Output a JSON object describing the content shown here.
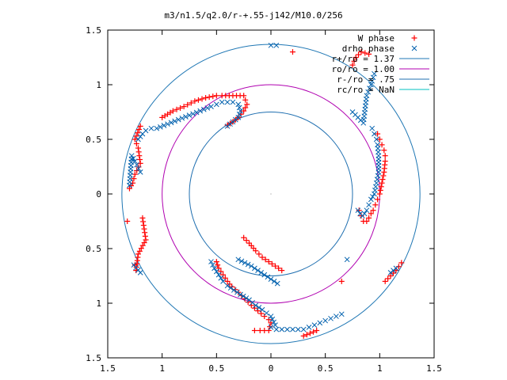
{
  "chart_data": {
    "type": "scatter",
    "title": "m3/n1.5/q2.0/r-+.55-j142/M10.0/256",
    "xlim": [
      -1.5,
      1.5
    ],
    "ylim": [
      -1.5,
      1.5
    ],
    "x_ticks": [
      {
        "value": -1.5,
        "label": "1.5"
      },
      {
        "value": -1,
        "label": "1"
      },
      {
        "value": -0.5,
        "label": "0.5"
      },
      {
        "value": 0,
        "label": "0"
      },
      {
        "value": 0.5,
        "label": "0.5"
      },
      {
        "value": 1,
        "label": "1"
      },
      {
        "value": 1.5,
        "label": "1.5"
      }
    ],
    "y_ticks": [
      {
        "value": 1.5,
        "label": "1.5"
      },
      {
        "value": 1,
        "label": "1"
      },
      {
        "value": 0.5,
        "label": "0.5"
      },
      {
        "value": 0,
        "label": "0"
      },
      {
        "value": -0.5,
        "label": "0.5"
      },
      {
        "value": -1,
        "label": "1"
      },
      {
        "value": -1.5,
        "label": "1.5"
      }
    ],
    "legend_position": "top-right",
    "series": [
      {
        "name": "W phase",
        "marker": "plus",
        "color": "#ff0000",
        "arms": [
          {
            "x": [
              -1.0,
              -0.9,
              -0.8,
              -0.7,
              -0.6,
              -0.5,
              -0.45,
              -0.35,
              -0.25,
              -0.22,
              -0.25,
              -0.3,
              -0.35,
              -0.4
            ],
            "y": [
              0.7,
              0.76,
              0.8,
              0.85,
              0.88,
              0.9,
              0.9,
              0.9,
              0.9,
              0.82,
              0.76,
              0.7,
              0.66,
              0.63
            ]
          },
          {
            "x": [
              0.98,
              1.0,
              1.02,
              1.04,
              1.05,
              1.05,
              1.04,
              1.02,
              1.0,
              0.98,
              0.96,
              0.94,
              0.92,
              0.9,
              0.88,
              0.85,
              0.83,
              0.81
            ],
            "y": [
              0.55,
              0.5,
              0.45,
              0.4,
              0.35,
              0.3,
              0.2,
              0.1,
              0.0,
              -0.05,
              -0.1,
              -0.15,
              -0.18,
              -0.22,
              -0.25,
              -0.25,
              -0.2,
              -0.15
            ]
          },
          {
            "x": [
              -0.5,
              -0.48,
              -0.44,
              -0.4,
              -0.36,
              -0.3,
              -0.24,
              -0.18,
              -0.12,
              -0.06,
              -0.02,
              0.0,
              -0.02,
              -0.1,
              -0.15
            ],
            "y": [
              -0.62,
              -0.68,
              -0.74,
              -0.8,
              -0.85,
              -0.9,
              -0.96,
              -1.02,
              -1.07,
              -1.12,
              -1.15,
              -1.18,
              -1.25,
              -1.25,
              -1.25
            ]
          },
          {
            "x": [
              -0.25,
              -0.2,
              -0.14,
              -0.08,
              -0.02,
              0.04,
              0.1
            ],
            "y": [
              -0.4,
              -0.45,
              -0.52,
              -0.58,
              -0.62,
              -0.66,
              -0.7
            ]
          },
          {
            "x": [
              -1.3,
              -1.27,
              -1.25,
              -1.2,
              -1.22,
              -1.25,
              -1.2,
              -1.18,
              -1.15,
              -1.22,
              -1.24,
              -1.32,
              -1.25
            ],
            "y": [
              0.05,
              0.1,
              0.18,
              0.28,
              0.42,
              0.5,
              0.62,
              -0.22,
              -0.42,
              -0.55,
              -0.7,
              -0.25,
              -0.65
            ]
          },
          {
            "x": [
              0.75,
              0.78,
              0.83,
              0.9,
              1.05,
              1.15,
              1.2,
              0.65,
              0.42,
              0.3,
              0.2
            ],
            "y": [
              1.18,
              1.25,
              1.3,
              1.28,
              -0.8,
              -0.7,
              -0.63,
              -0.8,
              -1.25,
              -1.3,
              1.3
            ]
          }
        ]
      },
      {
        "name": "drho phase",
        "marker": "cross",
        "color": "#0060ad",
        "arms": [
          {
            "x": [
              -1.05,
              -0.95,
              -0.85,
              -0.75,
              -0.65,
              -0.55,
              -0.5,
              -0.45,
              -0.4,
              -0.35,
              -0.3,
              -0.28,
              -0.3,
              -0.35,
              -0.4
            ],
            "y": [
              0.6,
              0.64,
              0.68,
              0.72,
              0.76,
              0.8,
              0.82,
              0.84,
              0.84,
              0.84,
              0.82,
              0.76,
              0.7,
              0.66,
              0.62
            ]
          },
          {
            "x": [
              0.93,
              0.95,
              0.97,
              0.98,
              0.99,
              0.99,
              0.97,
              0.95,
              0.92,
              0.9,
              0.88,
              0.86,
              0.84,
              0.82,
              0.8
            ],
            "y": [
              0.6,
              0.55,
              0.5,
              0.45,
              0.35,
              0.2,
              0.1,
              0.0,
              -0.05,
              -0.1,
              -0.15,
              -0.18,
              -0.2,
              -0.18,
              -0.15
            ]
          },
          {
            "x": [
              -0.55,
              -0.52,
              -0.48,
              -0.44,
              -0.4,
              -0.34,
              -0.28,
              -0.2,
              -0.14,
              -0.08,
              -0.04,
              0.0,
              0.04
            ],
            "y": [
              -0.62,
              -0.68,
              -0.74,
              -0.8,
              -0.84,
              -0.88,
              -0.92,
              -0.97,
              -1.02,
              -1.06,
              -1.09,
              -1.12,
              -1.2
            ]
          },
          {
            "x": [
              -0.3,
              -0.24,
              -0.18,
              -0.12,
              -0.06,
              0.0,
              0.06
            ],
            "y": [
              -0.6,
              -0.63,
              -0.66,
              -0.7,
              -0.74,
              -0.78,
              -0.82
            ]
          },
          {
            "x": [
              -1.2,
              -1.25,
              -1.28,
              -1.3,
              -1.22,
              -1.18,
              -1.15,
              -1.1,
              -1.26,
              -1.2
            ],
            "y": [
              0.2,
              0.3,
              0.35,
              0.08,
              0.5,
              0.55,
              0.58,
              0.6,
              -0.65,
              -0.72
            ]
          },
          {
            "x": [
              0.0,
              0.05,
              0.1,
              0.15,
              0.2,
              0.25,
              0.3,
              0.35,
              0.4,
              0.45,
              0.5,
              0.55,
              0.6,
              0.65,
              0.7,
              0.75,
              0.85,
              0.88,
              0.92,
              0.95,
              1.1,
              1.15,
              0.0,
              0.05
            ],
            "y": [
              -1.22,
              -1.24,
              -1.24,
              -1.24,
              -1.24,
              -1.24,
              -1.24,
              -1.22,
              -1.2,
              -1.18,
              -1.16,
              -1.14,
              -1.12,
              -1.1,
              -0.6,
              0.75,
              0.65,
              0.9,
              1.0,
              1.1,
              -0.72,
              -0.68,
              1.36,
              1.36
            ]
          }
        ]
      }
    ],
    "circles": [
      {
        "name": "r+/ro = 1.37",
        "radius": 1.37,
        "color": "#1f77b4"
      },
      {
        "name": "ro/ro = 1.00",
        "radius": 1.0,
        "color": "#b000b0"
      },
      {
        "name": "r-/ro = .75",
        "radius": 0.75,
        "color": "#1f6fb0"
      },
      {
        "name": "rc/ro = NaN",
        "radius": null,
        "color": "#00c0c0"
      }
    ]
  }
}
